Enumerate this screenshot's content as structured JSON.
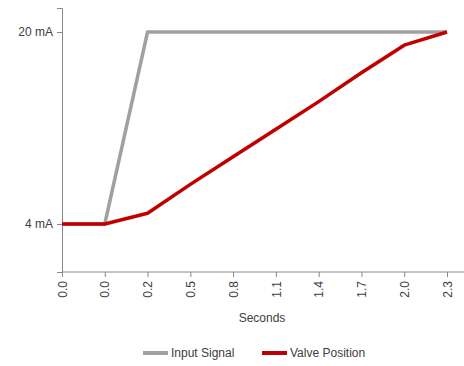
{
  "chart_data": {
    "type": "line",
    "x_label": "Seconds",
    "categories": [
      "0.0",
      "0.0",
      "0.2",
      "0.5",
      "0.8",
      "1.1",
      "1.4",
      "1.7",
      "2.0",
      "2.3"
    ],
    "series": [
      {
        "name": "Input Signal",
        "color": "#a0a0a0",
        "values": [
          4,
          4,
          20,
          20,
          20,
          20,
          20,
          20,
          20,
          20
        ]
      },
      {
        "name": "Valve Position",
        "color": "#c00000",
        "values": [
          4,
          4,
          4.9,
          7.3,
          9.6,
          11.9,
          14.2,
          16.6,
          18.9,
          20
        ]
      }
    ],
    "ylim": [
      0,
      22
    ],
    "yticks": [
      {
        "value": 4,
        "label": "4 mA"
      },
      {
        "value": 20,
        "label": "20 mA"
      }
    ],
    "legend": "bottom",
    "grid": false
  }
}
